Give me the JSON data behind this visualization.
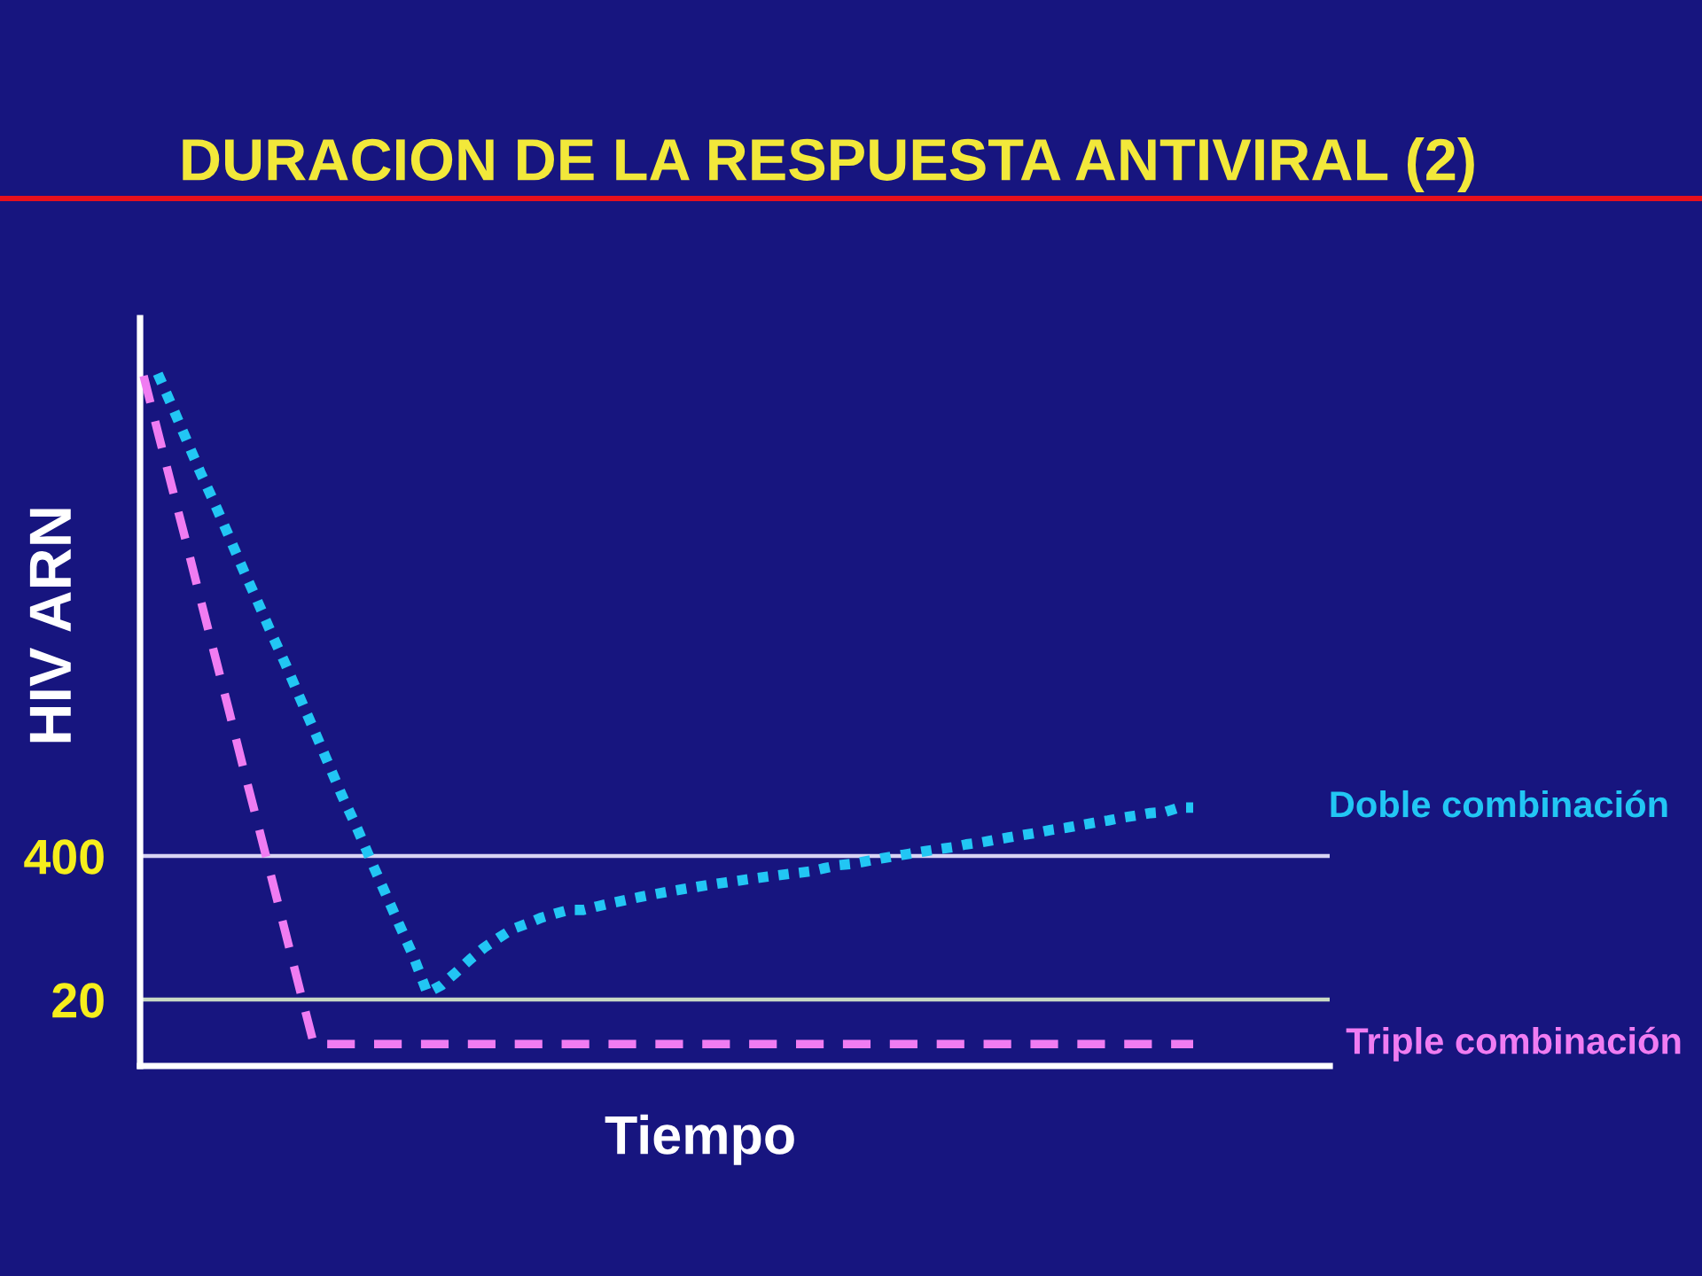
{
  "chart_data": {
    "type": "line",
    "title": "DURACION DE LA RESPUESTA ANTIVIRAL (2)",
    "xlabel": "Tiempo",
    "ylabel": "HIV ARN",
    "categories": [
      null,
      null,
      null,
      null,
      null,
      null,
      null,
      null,
      null,
      null,
      null,
      null,
      null,
      null,
      null,
      null,
      null,
      null,
      null,
      null,
      null,
      null,
      null,
      null,
      null,
      null,
      null,
      null,
      null,
      null,
      null,
      null,
      null,
      null,
      null,
      null,
      null,
      null,
      null,
      null,
      null,
      null,
      null,
      null,
      null,
      null,
      null,
      null,
      null,
      null,
      null,
      null,
      null,
      null,
      null,
      null,
      null,
      null,
      null,
      null,
      null,
      null,
      null,
      null,
      null,
      null,
      null,
      null,
      null,
      null,
      null,
      null,
      null,
      null,
      null
    ],
    "series": [
      {
        "name": "Doble combinación",
        "color": "#22c6f4",
        "line_style": "dotted",
        "values": [
          null,
          9400000,
          4800000,
          2400000,
          1200000,
          630000,
          320000,
          160000,
          83000,
          42000,
          22000,
          11000,
          5600,
          2800,
          1400,
          740,
          370,
          190,
          97,
          50,
          23,
          27,
          35,
          46,
          59,
          72,
          87,
          97,
          110,
          120,
          130,
          130,
          140,
          150,
          160,
          170,
          180,
          190,
          200,
          210,
          220,
          230,
          240,
          250,
          260,
          270,
          280,
          290,
          310,
          330,
          340,
          360,
          380,
          400,
          420,
          440,
          460,
          480,
          510,
          530,
          560,
          590,
          620,
          650,
          690,
          720,
          760,
          800,
          840,
          890,
          930,
          980,
          1000,
          1100,
          1100
        ]
      },
      {
        "name": "Triple combinación",
        "color": "#f07cf2",
        "line_style": "dashed",
        "values": [
          9000000,
          2800000,
          880000,
          280000,
          86000,
          27000,
          8500,
          2600,
          830,
          260,
          81,
          25,
          7.9,
          7.9,
          7.9,
          7.9,
          7.9,
          7.9,
          7.9,
          7.9,
          7.9,
          7.9,
          7.9,
          7.9,
          7.9,
          7.9,
          7.9,
          7.9,
          7.9,
          7.9,
          7.9,
          7.9,
          7.9,
          7.9,
          7.9,
          7.9,
          7.9,
          7.9,
          7.9,
          7.9,
          7.9,
          7.9,
          7.9,
          7.9,
          7.9,
          7.9,
          7.9,
          7.9,
          7.9,
          7.9,
          7.9,
          7.9,
          7.9,
          7.9,
          7.9,
          7.9,
          7.9,
          7.9,
          7.9,
          7.9,
          7.9,
          7.9,
          7.9,
          7.9,
          7.9,
          7.9,
          7.9,
          7.9,
          7.9,
          7.9,
          7.9,
          7.9,
          7.9,
          7.9,
          7.9
        ]
      }
    ],
    "log": true,
    "ylim": [
      5,
      30000000
    ],
    "yticks": [
      20,
      400
    ],
    "ref_lines": [
      {
        "axis": "y",
        "value": 400,
        "color": "#d8d4f4"
      },
      {
        "axis": "y",
        "value": 20,
        "color": "#c8d8c4"
      }
    ],
    "tick_labels": "y"
  }
}
